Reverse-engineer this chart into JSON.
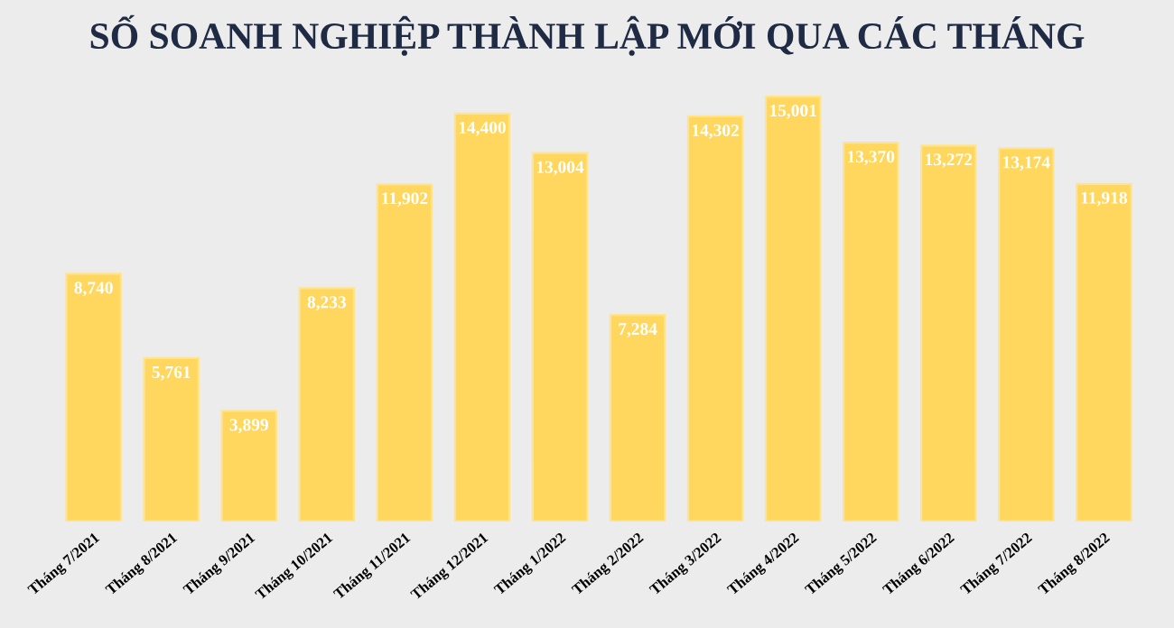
{
  "chart_data": {
    "type": "bar",
    "title": "SỐ SOANH NGHIỆP THÀNH LẬP MỚI QUA CÁC THÁNG",
    "categories": [
      "Tháng 7/2021",
      "Tháng 8/2021",
      "Tháng 9/2021",
      "Tháng 10/2021",
      "Tháng 11/2021",
      "Tháng 12/2021",
      "Tháng 1/2022",
      "Tháng 2/2022",
      "Tháng 3/2022",
      "Tháng 4/2022",
      "Tháng 5/2022",
      "Tháng 6/2022",
      "Tháng 7/2022",
      "Tháng 8/2022"
    ],
    "values": [
      8740,
      5761,
      3899,
      8233,
      11902,
      14400,
      13004,
      7284,
      14302,
      15001,
      13370,
      13272,
      13174,
      11918
    ],
    "value_labels": [
      "8,740",
      "5,761",
      "3,899",
      "8,233",
      "11,902",
      "14,400",
      "13,004",
      "7,284",
      "14,302",
      "15,001",
      "13,370",
      "13,272",
      "13,174",
      "11,918"
    ],
    "color": "#ffd75e",
    "grid": false,
    "legend": false
  }
}
